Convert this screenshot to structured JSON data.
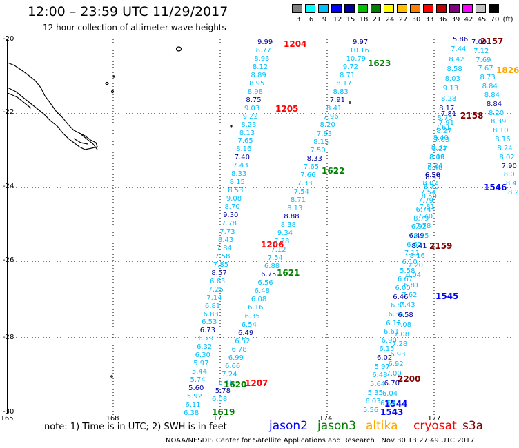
{
  "header": {
    "title": "12:00 – 23:59 UTC 11/29/2017",
    "subtitle": "12 hour collection of altimeter wave heights"
  },
  "scale": {
    "labels": [
      "3",
      "6",
      "9",
      "12",
      "15",
      "18",
      "21",
      "24",
      "27",
      "30",
      "33",
      "36",
      "39",
      "42",
      "45",
      "70",
      "(ft)"
    ],
    "colors": [
      "#808080",
      "#00ffff",
      "#00bfff",
      "#0000ff",
      "#0000a0",
      "#00c000",
      "#008000",
      "#ffff00",
      "#ffc000",
      "#ff8000",
      "#ff0000",
      "#c00000",
      "#800080",
      "#ff00ff",
      "#c0c0c0",
      "#000000"
    ]
  },
  "axes": {
    "lat_labels": [
      "-20",
      "-22",
      "-24",
      "-26",
      "-28",
      "-30"
    ],
    "lon_labels": [
      "165",
      "168",
      "171",
      "174",
      "177"
    ]
  },
  "tracks": [
    {
      "id": "t1",
      "color": "#00bfff",
      "values": [
        "9.99",
        "8.77",
        "8.93",
        "8.12",
        "8.89",
        "8.95",
        "8.98",
        "8.75",
        "9.03",
        "9.22",
        "8.23",
        "8.13",
        "7.65",
        "8.16",
        "7.40",
        "7.43",
        "8.33",
        "8.15",
        "8.53",
        "9.08",
        "8.70",
        "9.30",
        "7.78",
        "7.73",
        "8.43",
        "7.84",
        "7.58",
        "7.85",
        "8.57",
        "6.63",
        "7.25",
        "7.14",
        "6.81",
        "6.83",
        "6.53",
        "6.73",
        "6.79",
        "6.32",
        "6.30",
        "5.97",
        "5.44",
        "5.74",
        "5.60",
        "5.92",
        "6.11",
        "6.38"
      ],
      "times": [
        {
          "label": "1204",
          "color": "#ff0000"
        },
        {
          "label": "1205",
          "color": "#ff0000"
        },
        {
          "label": "1206",
          "color": "#ff0000"
        },
        {
          "label": "1207",
          "color": "#ff0000"
        }
      ]
    },
    {
      "id": "t2",
      "color": "#00bfff",
      "values": [
        "9.97",
        "10.16",
        "10.79",
        "9.72",
        "8.71",
        "8.17",
        "8.83",
        "7.91",
        "8.41",
        "7.96",
        "8.20",
        "7.83",
        "8.15",
        "7.50",
        "8.33",
        "7.65",
        "7.66",
        "7.33",
        "7.54",
        "8.71",
        "8.13",
        "8.88",
        "8.38",
        "9.34",
        "7.38",
        "7.12",
        "7.54",
        "6.88",
        "6.75",
        "6.56",
        "6.48",
        "6.08",
        "6.16",
        "6.35",
        "6.54",
        "6.49",
        "6.52",
        "6.78",
        "6.99",
        "6.66",
        "7.24",
        "6.46",
        "5.78",
        "6.08"
      ],
      "times": [
        {
          "label": "1623",
          "color": "#008000"
        },
        {
          "label": "1622",
          "color": "#008000"
        },
        {
          "label": "1621",
          "color": "#008000"
        },
        {
          "label": "1620",
          "color": "#008000"
        },
        {
          "label": "1619",
          "color": "#008000"
        }
      ]
    },
    {
      "id": "t3",
      "color": "#00bfff",
      "values": [
        "7.81",
        "7.91",
        "8.27",
        "7.63",
        "8.27",
        "8.16",
        "7.24",
        "6.50",
        "8.02",
        "7.54",
        "7.79",
        "6.74",
        "8.79",
        "6.92",
        "6.49",
        "6.62",
        "7.11",
        "6.10",
        "5.58",
        "6.67",
        "6.00",
        "6.46",
        "6.81",
        "6.36",
        "6.15",
        "6.61",
        "6.90",
        "6.15",
        "6.02",
        "5.97",
        "6.48",
        "5.64",
        "5.35",
        "6.03",
        "5.56"
      ],
      "times": [
        {
          "label": "2200",
          "color": "#800000"
        },
        {
          "label": "1544",
          "color": "#0000ff"
        },
        {
          "label": "1543",
          "color": "#0000ff"
        }
      ]
    },
    {
      "id": "t4",
      "color": "#00bfff",
      "values": [
        "5.86",
        "7.44",
        "8.42",
        "8.58",
        "8.03",
        "9.13",
        "8.28",
        "8.17",
        "8.75",
        "7.61",
        "8.40",
        "8.31",
        "8.09",
        "8.48",
        "8.35",
        "8.70",
        "8.50",
        "7.81",
        "7.40",
        "7.78",
        "8.45",
        "8.41",
        "8.16",
        "7.20",
        "6.04",
        "6.81",
        "7.62",
        "7.43",
        "6.58",
        "7.08",
        "7.08",
        "7.28",
        "6.93",
        "6.92",
        "7.00",
        "6.70",
        "6.04",
        "6.54"
      ],
      "times": [
        {
          "label": "2157",
          "color": "#800000"
        },
        {
          "label": "2158",
          "color": "#800000"
        },
        {
          "label": "1546",
          "color": "#0000ff"
        },
        {
          "label": "2159",
          "color": "#800000"
        },
        {
          "label": "1545",
          "color": "#0000ff"
        }
      ]
    },
    {
      "id": "t5",
      "color": "#00bfff",
      "values": [
        "7.09",
        "7.12",
        "7.69",
        "7.67",
        "8.73",
        "8.84",
        "8.84",
        "8.84",
        "8.20",
        "8.39",
        "8.10",
        "8.16",
        "8.24",
        "8.02",
        "7.90",
        "8.0",
        "8.4",
        "8.2"
      ],
      "times": [
        {
          "label": "1826",
          "color": "#ffa500"
        }
      ]
    }
  ],
  "legend": {
    "note": "note: 1) Time is in UTC; 2) SWH is in feet",
    "satellites": [
      {
        "name": "jason2",
        "color": "#0000ff"
      },
      {
        "name": "jason3",
        "color": "#008000"
      },
      {
        "name": "altika",
        "color": "#ffa500"
      },
      {
        "name": "cryosat",
        "color": "#ff0000"
      },
      {
        "name": "s3a",
        "color": "#800000"
      }
    ]
  },
  "footer": {
    "credit": "NOAA/NESDIS Center for Satellite Applications and Research   Nov 30 13:27:49 UTC 2017"
  }
}
